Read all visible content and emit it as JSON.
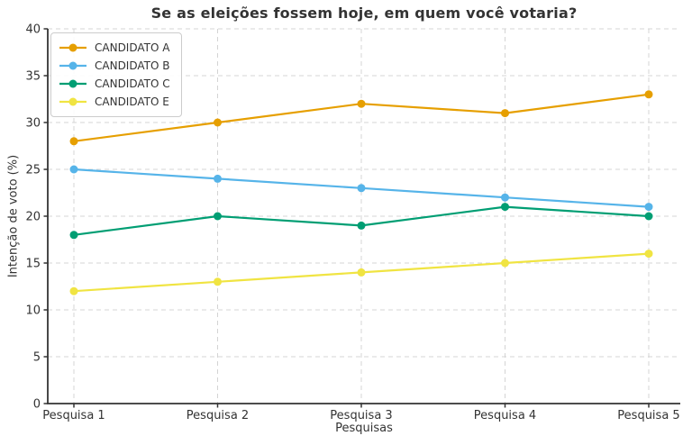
{
  "chart_data": {
    "type": "line",
    "title": "Se as eleições fossem hoje, em quem você votaria?",
    "xlabel": "Pesquisas",
    "ylabel": "Intenção de voto (%)",
    "categories": [
      "Pesquisa 1",
      "Pesquisa 2",
      "Pesquisa 3",
      "Pesquisa 4",
      "Pesquisa 5"
    ],
    "series": [
      {
        "name": "CANDIDATO A",
        "color": "#E69F00",
        "values": [
          28,
          30,
          32,
          31,
          33
        ]
      },
      {
        "name": "CANDIDATO B",
        "color": "#56B4E9",
        "values": [
          25,
          24,
          23,
          22,
          21
        ]
      },
      {
        "name": "CANDIDATO C",
        "color": "#009E73",
        "values": [
          18,
          20,
          19,
          21,
          20
        ]
      },
      {
        "name": "CANDIDATO E",
        "color": "#F0E442",
        "values": [
          12,
          13,
          14,
          15,
          16
        ]
      }
    ],
    "ylim": [
      0,
      40
    ],
    "yticks": [
      0,
      5,
      10,
      15,
      20,
      25,
      30,
      35,
      40
    ],
    "grid": true,
    "grid_style": "dashed",
    "legend_position": "top-left"
  },
  "style_colors": {
    "background": "#ffffff",
    "spine": "#333333",
    "grid": "#d4d4d4",
    "tick_label": "#333333",
    "title": "#333333",
    "legend_border": "#cccccc",
    "legend_background": "#ffffff"
  }
}
